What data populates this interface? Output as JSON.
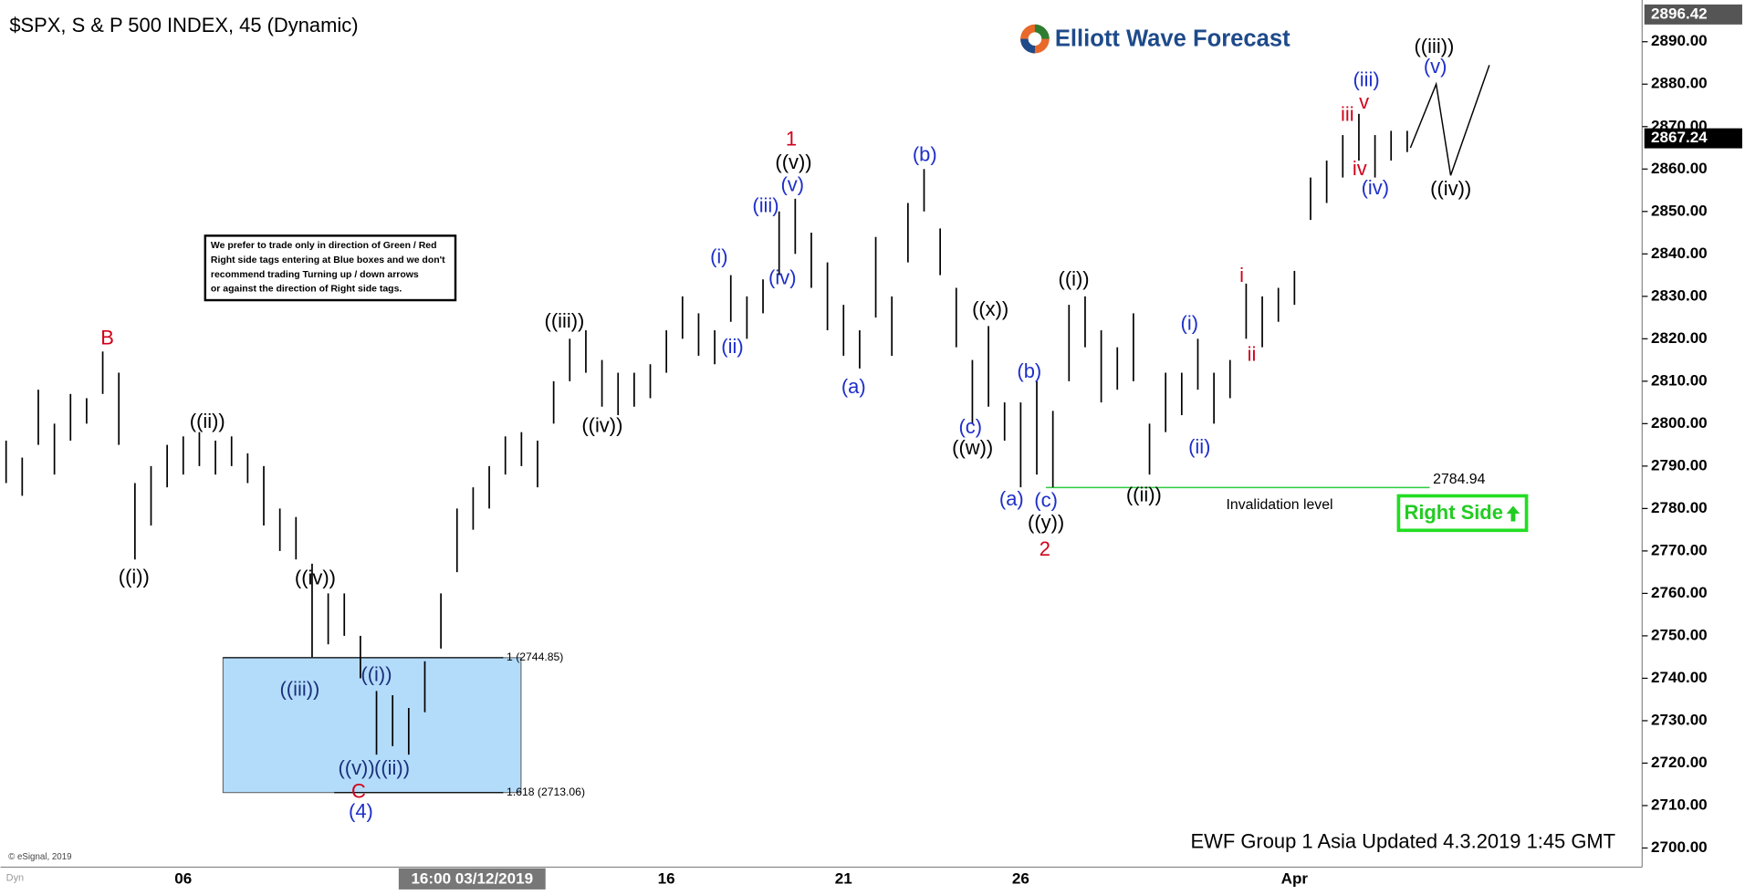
{
  "title": "$SPX, S & P 500 INDEX, 45 (Dynamic)",
  "logo": "Elliott Wave Forecast",
  "note": [
    "We prefer to trade only in direction of Green / Red",
    "Right side tags entering at Blue boxes and we don't",
    "recommend trading Turning up / down arrows",
    "or against the direction of Right side tags."
  ],
  "footer": "EWF Group 1 Asia Updated 4.3.2019 1:45 GMT",
  "copyright": "© eSignal, 2019",
  "cursor_label": "16:00 03/12/2019",
  "mode_label": "Dyn",
  "right_side": "Right Side",
  "chart_data": {
    "type": "ohlc",
    "color": "#000000",
    "categories": [
      null,
      null,
      null,
      null,
      null,
      null,
      null,
      null,
      null,
      null,
      null,
      "06",
      null,
      null,
      null,
      null,
      null,
      null,
      null,
      null,
      null,
      null,
      null,
      null,
      null,
      null,
      null,
      null,
      null,
      null,
      null,
      null,
      null,
      null,
      null,
      null,
      null,
      null,
      null,
      null,
      null,
      "16",
      null,
      null,
      null,
      null,
      null,
      null,
      null,
      null,
      null,
      null,
      "21",
      null,
      null,
      null,
      null,
      null,
      null,
      null,
      null,
      null,
      null,
      "26",
      null,
      null,
      null,
      null,
      null,
      null,
      null,
      null,
      null,
      null,
      null,
      null,
      null,
      null,
      null,
      null,
      "Apr",
      null,
      null,
      null,
      null,
      null,
      null,
      null
    ],
    "high": [
      2796,
      2792,
      2808,
      2800,
      2807,
      2806,
      2817,
      2812,
      2786,
      2790,
      2795,
      2797,
      2798,
      2796,
      2797,
      2793,
      2790,
      2780,
      2778,
      2767,
      2760,
      2760,
      2750,
      2737,
      2736,
      2733,
      2744,
      2760,
      2780,
      2785,
      2790,
      2797,
      2798,
      2796,
      2810,
      2820,
      2822,
      2815,
      2812,
      2812,
      2814,
      2822,
      2830,
      2826,
      2822,
      2835,
      2830,
      2834,
      2850,
      2853,
      2845,
      2838,
      2828,
      2822,
      2844,
      2830,
      2852,
      2860,
      2846,
      2832,
      2815,
      2823,
      2805,
      2805,
      2810,
      2803,
      2828,
      2830,
      2822,
      2818,
      2826,
      2800,
      2812,
      2812,
      2820,
      2812,
      2815,
      2833,
      2830,
      2832,
      2836,
      2858,
      2862,
      2868,
      2873,
      2868,
      2869,
      2869
    ],
    "low": [
      2786,
      2783,
      2795,
      2788,
      2796,
      2800,
      2807,
      2795,
      2768,
      2776,
      2785,
      2788,
      2790,
      2788,
      2790,
      2786,
      2776,
      2770,
      2768,
      2745,
      2748,
      2750,
      2740,
      2722,
      2724,
      2722,
      2732,
      2747,
      2765,
      2775,
      2780,
      2788,
      2790,
      2785,
      2800,
      2810,
      2812,
      2804,
      2802,
      2804,
      2806,
      2812,
      2820,
      2816,
      2814,
      2824,
      2820,
      2826,
      2835,
      2840,
      2832,
      2822,
      2816,
      2813,
      2825,
      2816,
      2838,
      2850,
      2835,
      2818,
      2800,
      2804,
      2796,
      2785,
      2788,
      2785,
      2810,
      2818,
      2805,
      2808,
      2810,
      2788,
      2798,
      2802,
      2808,
      2800,
      2806,
      2820,
      2818,
      2824,
      2828,
      2848,
      2852,
      2858,
      2862,
      2858,
      2862,
      2864
    ],
    "ylim": [
      2696,
      2898
    ],
    "yticks": [
      {
        "value": 2700,
        "label": "2700.00"
      },
      {
        "value": 2710,
        "label": "2710.00"
      },
      {
        "value": 2720,
        "label": "2720.00"
      },
      {
        "value": 2730,
        "label": "2730.00"
      },
      {
        "value": 2740,
        "label": "2740.00"
      },
      {
        "value": 2750,
        "label": "2750.00"
      },
      {
        "value": 2760,
        "label": "2760.00"
      },
      {
        "value": 2770,
        "label": "2770.00"
      },
      {
        "value": 2780,
        "label": "2780.00"
      },
      {
        "value": 2790,
        "label": "2790.00"
      },
      {
        "value": 2800,
        "label": "2800.00"
      },
      {
        "value": 2810,
        "label": "2810.00"
      },
      {
        "value": 2820,
        "label": "2820.00"
      },
      {
        "value": 2830,
        "label": "2830.00"
      },
      {
        "value": 2840,
        "label": "2840.00"
      },
      {
        "value": 2850,
        "label": "2850.00"
      },
      {
        "value": 2860,
        "label": "2860.00"
      },
      {
        "value": 2870,
        "label": "2870.00"
      },
      {
        "value": 2880,
        "label": "2880.00"
      },
      {
        "value": 2890,
        "label": "2890.00"
      }
    ],
    "last_price": 2867.24,
    "high_marker": 2896.42,
    "levels": [
      {
        "label": "1 (2744.85)",
        "value": 2744.85
      },
      {
        "label": "1.618 (2713.06)",
        "value": 2713.06
      }
    ],
    "zone_color": "#b3dcfb",
    "invalidation": {
      "label": "2784.94",
      "value": 2784.94,
      "text": "Invalidation level",
      "color": "#2ecc40"
    },
    "projection": {
      "x": [
        87.2,
        88.8,
        89.7,
        92.1
      ],
      "values": [
        2865,
        2880,
        2858.5,
        2884.5
      ]
    },
    "annotations": [
      {
        "text": "((i))",
        "color": "#000000"
      },
      {
        "text": "((ii))",
        "color": "#000000"
      },
      {
        "text": "((iv))",
        "color": "#000000"
      },
      {
        "text": "((iii))",
        "color": "#1c2f7a"
      },
      {
        "text": "((i))",
        "color": "#1c2f7a"
      },
      {
        "text": "((ii))",
        "color": "#1c2f7a"
      },
      {
        "text": "((v))",
        "color": "#1c2f7a"
      },
      {
        "text": "((iii))",
        "color": "#000000"
      },
      {
        "text": "((iv))",
        "color": "#000000"
      },
      {
        "text": "((v))",
        "color": "#000000"
      },
      {
        "text": "((x))",
        "color": "#000000"
      },
      {
        "text": "((w))",
        "color": "#000000"
      },
      {
        "text": "((y))",
        "color": "#000000"
      },
      {
        "text": "((i))",
        "color": "#000000"
      },
      {
        "text": "((ii))",
        "color": "#000000"
      },
      {
        "text": "((iii))",
        "color": "#000000"
      },
      {
        "text": "((iv))",
        "color": "#000000"
      },
      {
        "text": "B",
        "color": "#d0021b"
      },
      {
        "text": "C",
        "color": "#d0021b"
      },
      {
        "text": "1",
        "color": "#d0021b"
      },
      {
        "text": "2",
        "color": "#d0021b"
      },
      {
        "text": "i",
        "color": "#d0021b"
      },
      {
        "text": "ii",
        "color": "#d0021b"
      },
      {
        "text": "iii",
        "color": "#d0021b"
      },
      {
        "text": "iv",
        "color": "#d0021b"
      },
      {
        "text": "v",
        "color": "#d0021b"
      },
      {
        "text": "(4)",
        "color": "#1e2fc9"
      },
      {
        "text": "(i)",
        "color": "#1e2fc9"
      },
      {
        "text": "(ii)",
        "color": "#1e2fc9"
      },
      {
        "text": "(iii)",
        "color": "#1e2fc9"
      },
      {
        "text": "(iv)",
        "color": "#1e2fc9"
      },
      {
        "text": "(v)",
        "color": "#1e2fc9"
      },
      {
        "text": "(a)",
        "color": "#1e2fc9"
      },
      {
        "text": "(b)",
        "color": "#1e2fc9"
      },
      {
        "text": "(c)",
        "color": "#1e2fc9"
      },
      {
        "text": "(b)",
        "color": "#1e2fc9"
      },
      {
        "text": "(a)",
        "color": "#1e2fc9"
      },
      {
        "text": "(c)",
        "color": "#1e2fc9"
      },
      {
        "text": "(i)",
        "color": "#1e2fc9"
      },
      {
        "text": "(ii)",
        "color": "#1e2fc9"
      },
      {
        "text": "(iii)",
        "color": "#1e2fc9"
      },
      {
        "text": "(iv)",
        "color": "#1e2fc9"
      },
      {
        "text": "(v)",
        "color": "#1e2fc9"
      }
    ]
  }
}
